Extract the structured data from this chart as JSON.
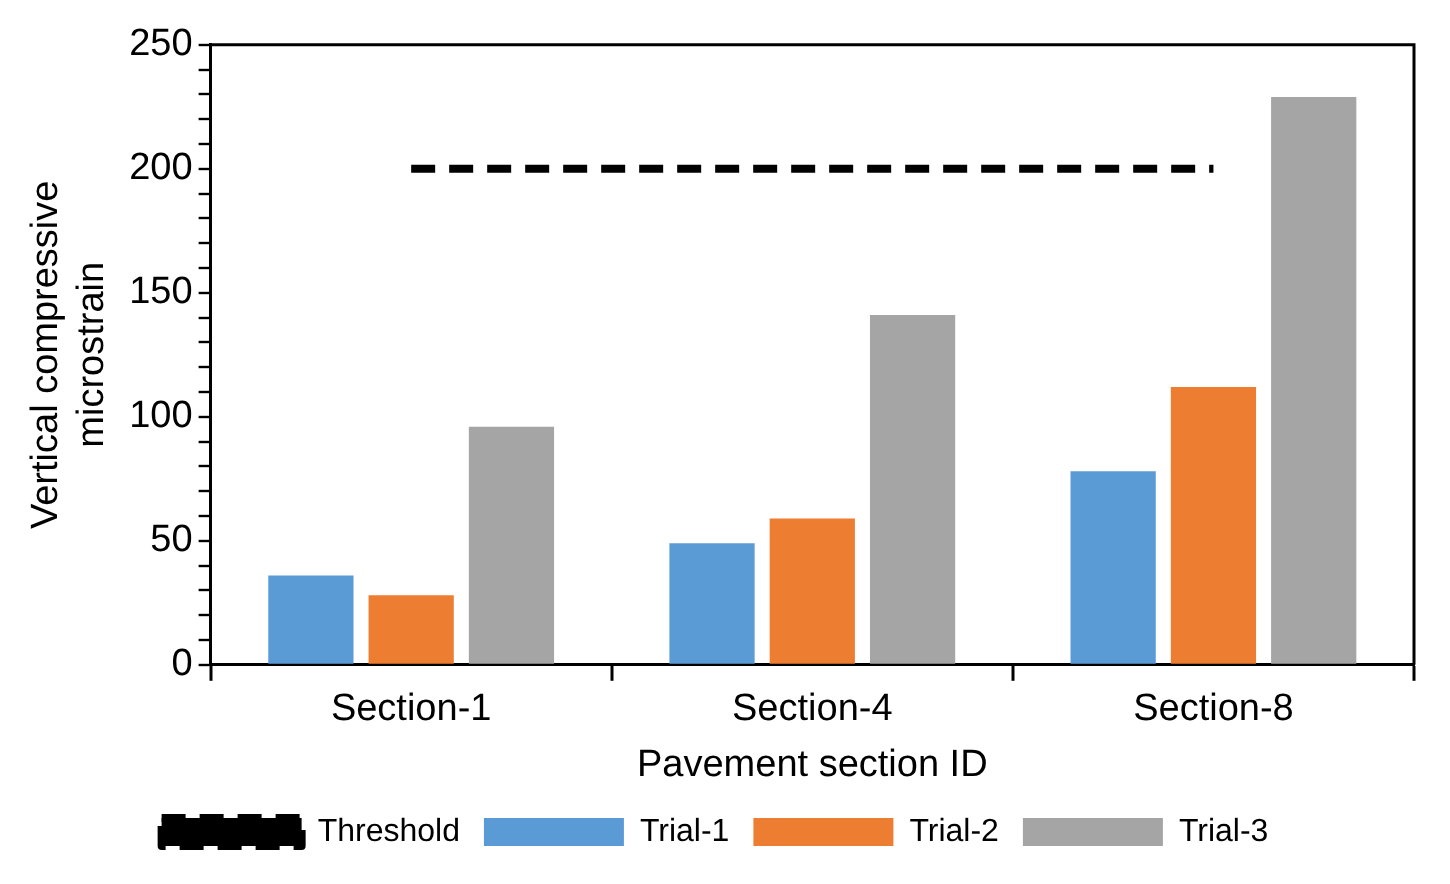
{
  "chart_data": {
    "type": "bar",
    "xlabel": "Pavement section ID",
    "ylabel": "Vertical compressive microstrain",
    "categories": [
      "Section-1",
      "Section-4",
      "Section-8"
    ],
    "series": [
      {
        "name": "Trial-1",
        "color": "#5b9bd5",
        "values": [
          36,
          49,
          78
        ]
      },
      {
        "name": "Trial-2",
        "color": "#ed7d31",
        "values": [
          28,
          59,
          112
        ]
      },
      {
        "name": "Trial-3",
        "color": "#a5a5a5",
        "values": [
          96,
          141,
          229
        ]
      },
      {
        "name": "Threshold",
        "type": "line",
        "color": "#000000",
        "line_style": "dashed",
        "marker": "none",
        "values": [
          200,
          200,
          200
        ]
      }
    ],
    "ylim": [
      0,
      250
    ],
    "yticks": [
      0,
      {
        "value": 10,
        "label": null
      },
      {
        "value": 20,
        "label": null
      },
      {
        "value": 30,
        "label": null
      },
      {
        "value": 40,
        "label": null
      },
      50,
      {
        "value": 60,
        "label": null
      },
      {
        "value": 70,
        "label": null
      },
      {
        "value": 80,
        "label": null
      },
      {
        "value": 90,
        "label": null
      },
      100,
      {
        "value": 110,
        "label": null
      },
      {
        "value": 120,
        "label": null
      },
      {
        "value": 130,
        "label": null
      },
      {
        "value": 140,
        "label": null
      },
      150,
      {
        "value": 160,
        "label": null
      },
      {
        "value": 170,
        "label": null
      },
      {
        "value": 180,
        "label": null
      },
      {
        "value": 190,
        "label": null
      },
      200,
      {
        "value": 210,
        "label": null
      },
      {
        "value": 220,
        "label": null
      },
      {
        "value": 230,
        "label": null
      },
      {
        "value": 240,
        "label": null
      },
      250
    ],
    "grid": false,
    "legend": "bottom"
  }
}
